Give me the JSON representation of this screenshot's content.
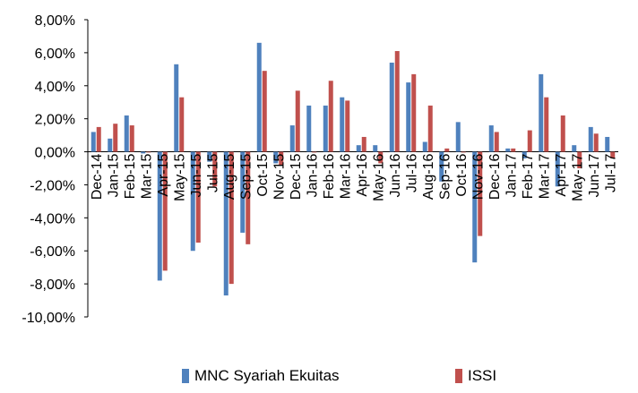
{
  "chart_data": {
    "type": "bar",
    "categories": [
      "Dec-14",
      "Jan-15",
      "Feb-15",
      "Mar-15",
      "Apr-15",
      "May-15",
      "Jun-15",
      "Jul-15",
      "Aug-15",
      "Sep-15",
      "Oct-15",
      "Nov-15",
      "Dec-15",
      "Jan-16",
      "Feb-16",
      "Mar-16",
      "Apr-16",
      "May-16",
      "Jun-16",
      "Jul-16",
      "Aug-16",
      "Sep-16",
      "Oct-16",
      "Nov-16",
      "Dec-16",
      "Jan-17",
      "Feb-17",
      "Mar-17",
      "Apr-17",
      "May-17",
      "Jun-17",
      "Jul-17"
    ],
    "series": [
      {
        "name": "MNC Syariah Ekuitas",
        "color": "#4F81BD",
        "values": [
          1.2,
          0.8,
          2.2,
          -0.1,
          -7.8,
          5.3,
          -6.0,
          -0.6,
          -8.7,
          -4.9,
          6.6,
          -0.7,
          1.6,
          2.8,
          2.8,
          3.3,
          0.4,
          0.4,
          5.4,
          4.2,
          0.6,
          -1.8,
          1.8,
          -6.7,
          1.6,
          0.2,
          -0.4,
          4.7,
          -2.1,
          0.4,
          1.5,
          0.9
        ]
      },
      {
        "name": "ISSI",
        "color": "#C0504D",
        "values": [
          1.5,
          1.7,
          1.6,
          0.0,
          -7.2,
          3.3,
          -5.5,
          -2.1,
          -8.0,
          -5.6,
          4.9,
          -0.8,
          3.7,
          0.0,
          4.3,
          3.1,
          0.9,
          -0.7,
          6.1,
          4.7,
          2.8,
          0.2,
          0.0,
          -5.1,
          1.2,
          0.2,
          1.3,
          3.3,
          2.2,
          -1.0,
          1.1,
          -0.4
        ]
      }
    ],
    "ylim": [
      -10,
      8
    ],
    "yticks": [
      8,
      6,
      4,
      2,
      0,
      -2,
      -4,
      -6,
      -8,
      -10
    ],
    "ytick_labels": [
      "8,00%",
      "6,00%",
      "4,00%",
      "2,00%",
      "0,00%",
      "-2,00%",
      "-4,00%",
      "-6,00%",
      "-8,00%",
      "-10,00%"
    ],
    "title": "",
    "xlabel": "",
    "ylabel": "",
    "legend_position": "bottom",
    "grid": false
  }
}
